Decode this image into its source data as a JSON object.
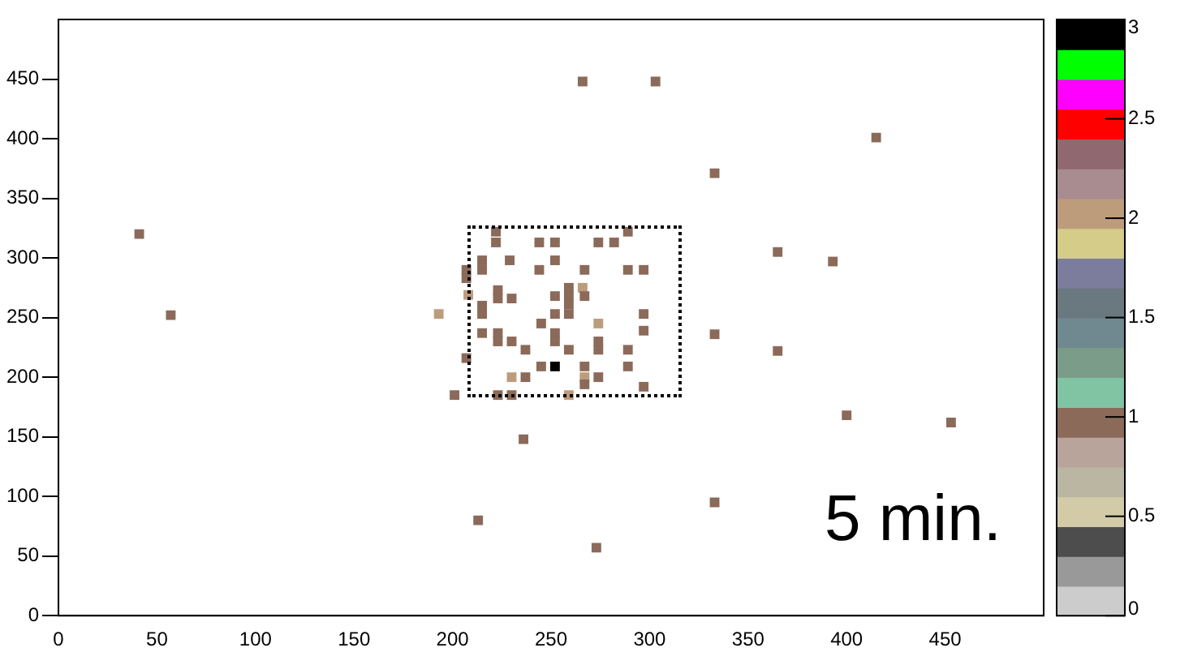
{
  "chart_data": {
    "type": "scatter",
    "marker": "square",
    "grid": false,
    "legend": false,
    "xlim": [
      0,
      500
    ],
    "xticks": [
      0,
      50,
      100,
      150,
      200,
      250,
      300,
      350,
      400,
      450
    ],
    "ylim": [
      0,
      500
    ],
    "yticks": [
      0,
      50,
      100,
      150,
      200,
      250,
      300,
      350,
      400,
      450
    ],
    "clim": [
      0,
      3
    ],
    "cticks": [
      0,
      0.5,
      1,
      1.5,
      2,
      2.5,
      3
    ],
    "annotations": [
      "5 min."
    ],
    "x": [
      266,
      303,
      415,
      333,
      400,
      453,
      236,
      213,
      333,
      273,
      41,
      57,
      365,
      393,
      333,
      365,
      193,
      222,
      222,
      244,
      252,
      274,
      282,
      289,
      215,
      207,
      215,
      207,
      229,
      252,
      244,
      267,
      289,
      297,
      208,
      223,
      223,
      230,
      266,
      259,
      252,
      259,
      267,
      259,
      252,
      259,
      215,
      215,
      297,
      245,
      274,
      215,
      223,
      223,
      230,
      237,
      252,
      252,
      259,
      274,
      274,
      297,
      289,
      207,
      245,
      252,
      267,
      289,
      230,
      237,
      267,
      274,
      267,
      297,
      201,
      223,
      230,
      259
    ],
    "values": [
      448,
      448,
      401,
      371,
      168,
      162,
      148,
      80,
      95,
      57,
      320,
      252,
      305,
      297,
      236,
      222,
      253,
      322,
      313,
      313,
      313,
      313,
      313,
      322,
      298,
      290,
      290,
      283,
      298,
      298,
      290,
      290,
      290,
      290,
      269,
      273,
      266,
      266,
      275,
      275,
      268,
      268,
      268,
      261,
      253,
      253,
      260,
      253,
      253,
      245,
      245,
      237,
      237,
      230,
      230,
      223,
      237,
      230,
      223,
      230,
      223,
      239,
      223,
      216,
      209,
      209,
      209,
      209,
      200,
      200,
      200,
      200,
      194,
      192,
      185,
      185,
      185,
      185
    ],
    "cvalues": [
      1,
      1,
      1,
      1,
      1,
      1,
      1,
      1,
      1,
      1,
      1,
      1,
      1,
      1,
      1,
      1,
      2,
      1,
      1,
      1,
      1,
      1,
      1,
      1,
      1,
      1,
      1,
      1,
      1,
      1,
      1,
      1,
      1,
      1,
      2,
      1,
      1,
      1,
      2,
      1,
      1,
      1,
      1,
      1,
      1,
      1,
      1,
      1,
      1,
      1,
      2,
      1,
      1,
      1,
      1,
      1,
      1,
      1,
      1,
      1,
      1,
      1,
      1,
      1,
      1,
      3,
      1,
      1,
      2,
      1,
      2,
      1,
      1,
      1,
      1,
      1,
      1,
      2
    ]
  }
}
